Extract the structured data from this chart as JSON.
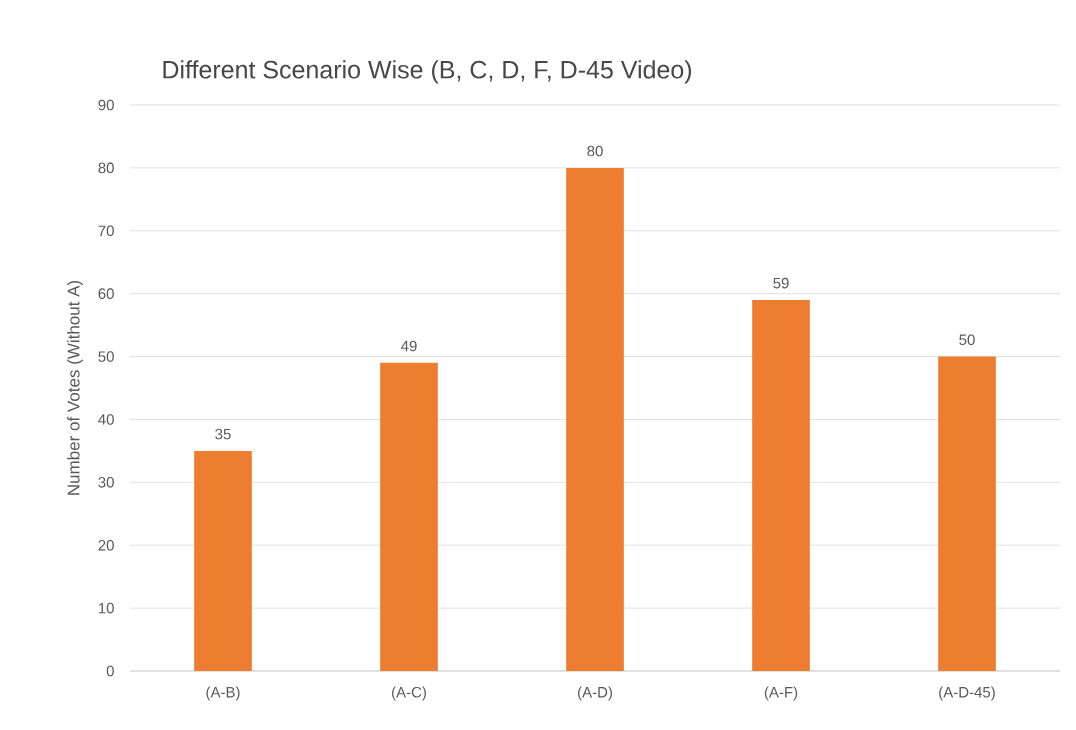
{
  "chart_data": {
    "type": "bar",
    "title": "Different Scenario Wise (B, C, D, F, D-45 Video)",
    "ylabel": "Number of Votes (Without A)",
    "categories": [
      "(A-B)",
      "(A-C)",
      "(A-D)",
      "(A-F)",
      "(A-D-45)"
    ],
    "values": [
      35,
      49,
      80,
      59,
      50
    ],
    "color": "#ed7d31",
    "ylim": [
      0,
      90
    ],
    "yticks": [
      0,
      10,
      20,
      30,
      40,
      50,
      60,
      70,
      80,
      90
    ],
    "grid": "y",
    "data_labels": true
  }
}
